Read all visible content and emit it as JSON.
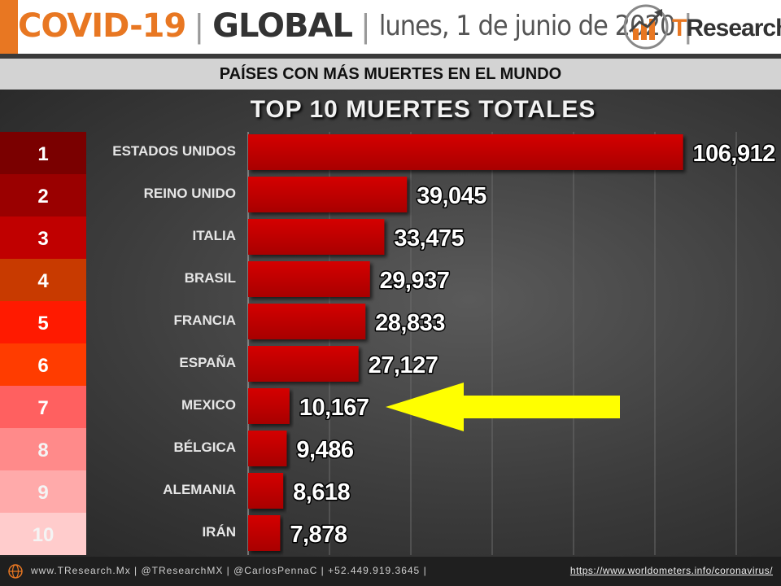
{
  "header": {
    "covid": "COVID-19",
    "sep": "|",
    "global": "GLOBAL",
    "date": "lunes, 1 de junio de 2020",
    "logo_t": "T",
    "logo_rest": "Research"
  },
  "subtitle": "PAÍSES CON MÁS MUERTES EN EL MUNDO",
  "chart_data": {
    "type": "bar",
    "orientation": "horizontal",
    "title": "TOP 10 MUERTES TOTALES",
    "ranks": [
      "1",
      "2",
      "3",
      "4",
      "5",
      "6",
      "7",
      "8",
      "9",
      "10"
    ],
    "categories": [
      "ESTADOS UNIDOS",
      "REINO UNIDO",
      "ITALIA",
      "BRASIL",
      "FRANCIA",
      "ESPAÑA",
      "MEXICO",
      "BÉLGICA",
      "ALEMANIA",
      "IRÁN"
    ],
    "values": [
      106912,
      39045,
      33475,
      29937,
      28833,
      27127,
      10167,
      9486,
      8618,
      7878
    ],
    "value_labels": [
      "106,912",
      "39,045",
      "33,475",
      "29,937",
      "28,833",
      "27,127",
      "10,167",
      "9,486",
      "8,618",
      "7,878"
    ],
    "xlim": [
      0,
      120000
    ],
    "grid": true,
    "highlight": "MEXICO",
    "colors": {
      "bar": "#c00000",
      "rank": [
        "#7a0000",
        "#9a0000",
        "#c00000",
        "#c83a00",
        "#ff1a00",
        "#ff3c00",
        "#ff6060",
        "#ff8a8a",
        "#ffaaaa",
        "#ffcccc"
      ],
      "arrow": "#ffff00"
    }
  },
  "footer": {
    "site": "www.TResearch.Mx  |  @TResearchMX  |  @CarlosPennaC  |  +52.449.919.3645  |",
    "source_url": "https://www.worldometers.info/coronavirus/"
  }
}
